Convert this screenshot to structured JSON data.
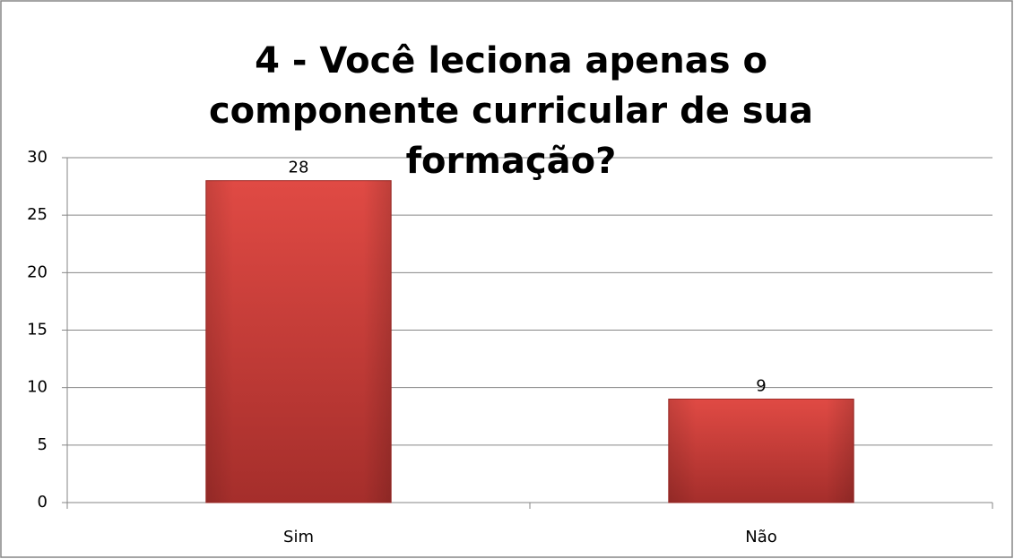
{
  "chart_data": {
    "type": "bar",
    "title": "4 - Você leciona apenas o componente curricular de sua formação?",
    "categories": [
      "Sim",
      "Não"
    ],
    "values": [
      28,
      9
    ],
    "color": "#d9403b",
    "ylim": [
      0,
      30
    ],
    "yticks": [
      0,
      5,
      10,
      15,
      20,
      25,
      30
    ],
    "grid": true
  }
}
